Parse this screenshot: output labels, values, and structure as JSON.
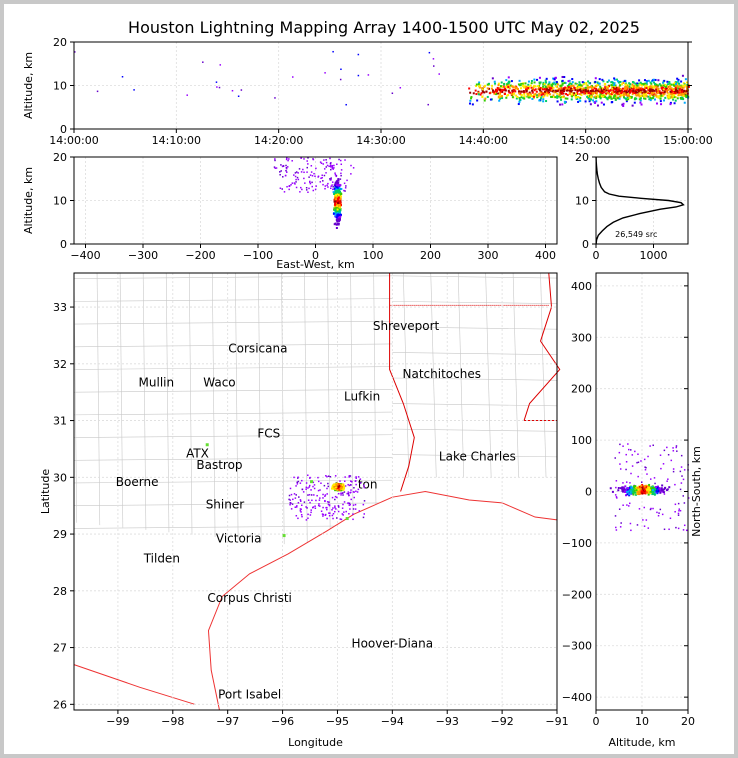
{
  "title": "Houston Lightning Mapping Array 1400-1500 UTC May 02, 2025",
  "chart_data": [
    {
      "panel": "time-height",
      "type": "scatter",
      "xlabel": "",
      "ylabel": "Altitude, km",
      "x_ticks": [
        "14:00:00",
        "14:10:00",
        "14:20:00",
        "14:30:00",
        "14:40:00",
        "14:50:00",
        "15:00:00"
      ],
      "y_ticks": [
        "0",
        "10",
        "20"
      ],
      "xlim_minutes": [
        0,
        60
      ],
      "ylim": [
        0,
        20
      ],
      "storm": {
        "start_min": 38.5,
        "end_min": 60,
        "center_alt_km": 9,
        "spread_km": 3
      }
    },
    {
      "panel": "east-west-altitude",
      "type": "scatter",
      "xlabel": "East-West, km",
      "ylabel": "Altitude, km",
      "x_ticks": [
        "−400",
        "−300",
        "−200",
        "−100",
        "0",
        "100",
        "200",
        "300",
        "400"
      ],
      "y_ticks": [
        "0",
        "10",
        "20"
      ],
      "xlim": [
        -420,
        420
      ],
      "ylim": [
        0,
        20
      ],
      "core": {
        "x_km": 37,
        "alt_km": 10
      }
    },
    {
      "panel": "altitude-histogram",
      "type": "line",
      "xlabel": "",
      "ylabel": "",
      "x_ticks": [
        "0",
        "1000"
      ],
      "y_ticks": [
        "0",
        "10",
        "20"
      ],
      "xlim": [
        0,
        1600
      ],
      "ylim": [
        0,
        20
      ],
      "annotation": "26,549 src",
      "series": [
        {
          "alt": [
            0,
            1,
            2,
            3,
            4,
            5,
            6,
            7,
            8,
            8.5,
            9,
            9.5,
            10,
            10.5,
            11,
            11.5,
            12,
            13,
            14,
            15,
            16,
            17,
            18,
            19,
            20
          ],
          "count": [
            2,
            10,
            40,
            110,
            190,
            300,
            470,
            760,
            1120,
            1390,
            1520,
            1480,
            1260,
            780,
            400,
            230,
            150,
            90,
            60,
            40,
            25,
            15,
            8,
            4,
            2
          ]
        }
      ]
    },
    {
      "panel": "plan-view",
      "type": "scatter",
      "xlabel": "Longitude",
      "ylabel": "Latitude",
      "x_ticks": [
        "−99",
        "−98",
        "−97",
        "−96",
        "−95",
        "−94",
        "−93",
        "−92",
        "−91"
      ],
      "y_ticks": [
        "26",
        "27",
        "28",
        "29",
        "30",
        "31",
        "32",
        "33"
      ],
      "xlim": [
        -99.8,
        -91
      ],
      "ylim": [
        25.9,
        33.6
      ],
      "core": {
        "lon": -95.0,
        "lat": 29.85
      }
    },
    {
      "panel": "north-south-altitude",
      "type": "scatter",
      "xlabel": "Altitude, km",
      "ylabel": "North-South, km",
      "x_ticks": [
        "0",
        "10",
        "20"
      ],
      "y_ticks": [
        "−400",
        "−300",
        "−200",
        "−100",
        "0",
        "100",
        "200",
        "300",
        "400"
      ],
      "xlim": [
        0,
        20
      ],
      "ylim": [
        -425,
        425
      ],
      "core": {
        "alt_km": 10,
        "y_km": 5
      }
    }
  ],
  "map_labels": [
    {
      "name": "Shreveport",
      "lon": -93.75,
      "lat": 32.6,
      "color": "#000000"
    },
    {
      "name": "Corsicana",
      "lon": -96.45,
      "lat": 32.2,
      "color": "#000000"
    },
    {
      "name": "Natchitoches",
      "lon": -93.1,
      "lat": 31.75,
      "color": "#000000"
    },
    {
      "name": "Mullin",
      "lon": -98.3,
      "lat": 31.6,
      "color": "#f08c50"
    },
    {
      "name": "Waco",
      "lon": -97.15,
      "lat": 31.6,
      "color": "#000000"
    },
    {
      "name": "Lufkin",
      "lon": -94.55,
      "lat": 31.35,
      "color": "#000000"
    },
    {
      "name": "FCS",
      "lon": -96.25,
      "lat": 30.7,
      "color": "#000000"
    },
    {
      "name": "ATX",
      "lon": -97.55,
      "lat": 30.35,
      "color": "#f08c50"
    },
    {
      "name": "Bastrop",
      "lon": -97.15,
      "lat": 30.15,
      "color": "#000000"
    },
    {
      "name": "Lake Charles",
      "lon": -92.45,
      "lat": 30.3,
      "color": "#000000"
    },
    {
      "name": "Boerne",
      "lon": -98.65,
      "lat": 29.85,
      "color": "#000000"
    },
    {
      "name": "ton",
      "lon": -94.45,
      "lat": 29.8,
      "color": "#ffa500"
    },
    {
      "name": "Shiner",
      "lon": -97.05,
      "lat": 29.45,
      "color": "#000000"
    },
    {
      "name": "Victoria",
      "lon": -96.8,
      "lat": 28.85,
      "color": "#000000"
    },
    {
      "name": "Tilden",
      "lon": -98.2,
      "lat": 28.5,
      "color": "#000000"
    },
    {
      "name": "Corpus Christi",
      "lon": -96.6,
      "lat": 27.8,
      "color": "#000000"
    },
    {
      "name": "Hoover-Diana",
      "lon": -94.0,
      "lat": 27.0,
      "color": "#0000ff"
    },
    {
      "name": "Port Isabel",
      "lon": -96.6,
      "lat": 26.1,
      "color": "#000000"
    }
  ]
}
